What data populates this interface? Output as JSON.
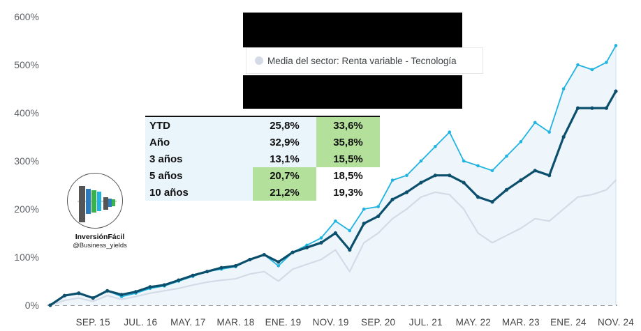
{
  "chart_data": {
    "type": "line",
    "ylim": [
      0,
      600
    ],
    "yticks": [
      0,
      100,
      200,
      300,
      400,
      500,
      600
    ],
    "ytick_labels": [
      "0%",
      "100%",
      "200%",
      "300%",
      "400%",
      "500%",
      "600%"
    ],
    "x_range": [
      "2014-12",
      "2024-11"
    ],
    "xticks": [
      "2015-09",
      "2016-07",
      "2017-05",
      "2018-03",
      "2019-01",
      "2019-11",
      "2020-09",
      "2021-07",
      "2022-05",
      "2023-03",
      "2024-01",
      "2024-11"
    ],
    "xtick_labels": [
      "SEP. 15",
      "JUL. 16",
      "MAY. 17",
      "MAR. 18",
      "ENE. 19",
      "NOV. 19",
      "SEP. 20",
      "JUL. 21",
      "MAY. 22",
      "MAR. 23",
      "ENE. 24",
      "NOV. 24"
    ],
    "grid": false,
    "series": [
      {
        "color": "#1fb3e0",
        "markers": true,
        "fill": "#eef6fc",
        "x": [
          "2014-12",
          "2015-03",
          "2015-06",
          "2015-09",
          "2015-12",
          "2016-03",
          "2016-06",
          "2016-09",
          "2016-12",
          "2017-03",
          "2017-06",
          "2017-09",
          "2017-12",
          "2018-03",
          "2018-06",
          "2018-09",
          "2018-12",
          "2019-03",
          "2019-06",
          "2019-09",
          "2019-12",
          "2020-03",
          "2020-06",
          "2020-09",
          "2020-12",
          "2021-03",
          "2021-06",
          "2021-09",
          "2021-12",
          "2022-03",
          "2022-06",
          "2022-09",
          "2022-12",
          "2023-03",
          "2023-06",
          "2023-09",
          "2023-12",
          "2024-03",
          "2024-06",
          "2024-09",
          "2024-11"
        ],
        "y": [
          0,
          20,
          25,
          15,
          30,
          18,
          25,
          35,
          40,
          50,
          60,
          70,
          75,
          80,
          95,
          105,
          82,
          110,
          125,
          140,
          175,
          155,
          200,
          205,
          260,
          270,
          300,
          330,
          360,
          300,
          290,
          280,
          310,
          340,
          380,
          360,
          450,
          500,
          490,
          505,
          540
        ]
      },
      {
        "color": "#0b4f6c",
        "markers": true,
        "x": [
          "2014-12",
          "2015-03",
          "2015-06",
          "2015-09",
          "2015-12",
          "2016-03",
          "2016-06",
          "2016-09",
          "2016-12",
          "2017-03",
          "2017-06",
          "2017-09",
          "2017-12",
          "2018-03",
          "2018-06",
          "2018-09",
          "2018-12",
          "2019-03",
          "2019-06",
          "2019-09",
          "2019-12",
          "2020-03",
          "2020-06",
          "2020-09",
          "2020-12",
          "2021-03",
          "2021-06",
          "2021-09",
          "2021-12",
          "2022-03",
          "2022-06",
          "2022-09",
          "2022-12",
          "2023-03",
          "2023-06",
          "2023-09",
          "2023-12",
          "2024-03",
          "2024-06",
          "2024-09",
          "2024-11"
        ],
        "y": [
          0,
          20,
          25,
          15,
          30,
          22,
          28,
          38,
          42,
          52,
          62,
          70,
          78,
          82,
          95,
          105,
          90,
          110,
          120,
          130,
          150,
          115,
          170,
          185,
          220,
          235,
          255,
          270,
          270,
          255,
          225,
          215,
          240,
          260,
          280,
          270,
          350,
          410,
          410,
          410,
          445
        ]
      },
      {
        "name": "Media del sector: Renta variable - Tecnología",
        "color": "#d4dbe6",
        "markers": false,
        "x": [
          "2014-12",
          "2015-03",
          "2015-06",
          "2015-09",
          "2015-12",
          "2016-03",
          "2016-06",
          "2016-09",
          "2016-12",
          "2017-03",
          "2017-06",
          "2017-09",
          "2017-12",
          "2018-03",
          "2018-06",
          "2018-09",
          "2018-12",
          "2019-03",
          "2019-06",
          "2019-09",
          "2019-12",
          "2020-03",
          "2020-06",
          "2020-09",
          "2020-12",
          "2021-03",
          "2021-06",
          "2021-09",
          "2021-12",
          "2022-03",
          "2022-06",
          "2022-09",
          "2022-12",
          "2023-03",
          "2023-06",
          "2023-09",
          "2023-12",
          "2024-03",
          "2024-06",
          "2024-09",
          "2024-11"
        ],
        "y": [
          0,
          10,
          15,
          8,
          20,
          12,
          18,
          25,
          30,
          35,
          42,
          48,
          52,
          55,
          65,
          70,
          50,
          75,
          85,
          95,
          115,
          70,
          130,
          150,
          180,
          200,
          225,
          235,
          230,
          200,
          150,
          130,
          145,
          160,
          180,
          175,
          200,
          225,
          230,
          240,
          260
        ]
      }
    ]
  },
  "legend": {
    "label": "Media del sector: Renta variable - Tecnología",
    "dot_color": "#d4dbe6"
  },
  "returns_table": {
    "rows": [
      {
        "label": "YTD",
        "a": "25,8%",
        "b": "33,6%",
        "highlight": "b"
      },
      {
        "label": "Año",
        "a": "32,9%",
        "b": "35,8%",
        "highlight": "b"
      },
      {
        "label": "3 años",
        "a": "13,1%",
        "b": "15,5%",
        "highlight": "b"
      },
      {
        "label": "5 años",
        "a": "20,7%",
        "b": "18,5%",
        "highlight": "a"
      },
      {
        "label": "10 años",
        "a": "21,2%",
        "b": "19,3%",
        "highlight": "a"
      }
    ],
    "highlight_color": "#b3e09b",
    "cell_color": "#eaf4fb"
  },
  "logo": {
    "title": "InversiónFácil",
    "handle": "@Business_yields"
  }
}
